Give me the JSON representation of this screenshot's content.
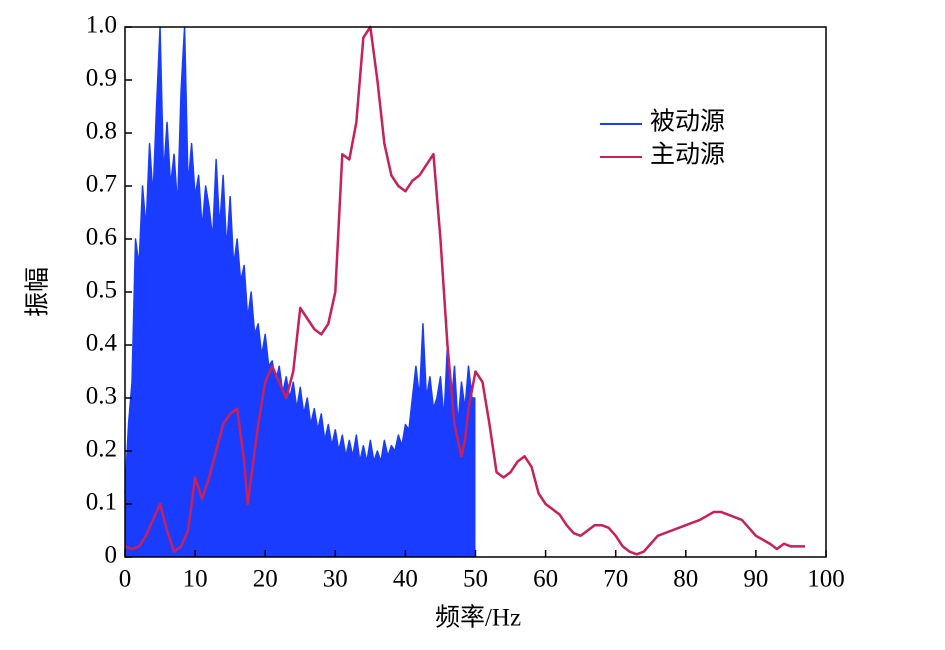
{
  "chart_data": {
    "type": "line",
    "xlabel": "频率/Hz",
    "ylabel": "振幅",
    "xlim": [
      0,
      100
    ],
    "ylim": [
      0,
      1
    ],
    "xticks": [
      0,
      10,
      20,
      30,
      40,
      50,
      60,
      70,
      80,
      90,
      100
    ],
    "yticks": [
      0,
      0.1,
      0.2,
      0.3,
      0.4,
      0.5,
      0.6,
      0.7,
      0.8,
      0.9,
      {
        "value": 1,
        "label": "1.0"
      }
    ],
    "legend": "upper right",
    "series": [
      {
        "name": "被动源",
        "color": "#1a3cff",
        "fill": true,
        "x": [
          0,
          0.5,
          1,
          1.5,
          2,
          2.5,
          3,
          3.5,
          4,
          4.5,
          5,
          5.5,
          6,
          6.5,
          7,
          7.5,
          8,
          8.5,
          9,
          9.5,
          10,
          10.5,
          11,
          11.5,
          12,
          12.5,
          13,
          13.5,
          14,
          14.5,
          15,
          15.5,
          16,
          16.5,
          17,
          17.5,
          18,
          18.5,
          19,
          19.5,
          20,
          20.5,
          21,
          21.5,
          22,
          22.5,
          23,
          23.5,
          24,
          24.5,
          25,
          25.5,
          26,
          26.5,
          27,
          27.5,
          28,
          28.5,
          29,
          29.5,
          30,
          30.5,
          31,
          31.5,
          32,
          32.5,
          33,
          33.5,
          34,
          34.5,
          35,
          35.5,
          36,
          36.5,
          37,
          37.5,
          38,
          38.5,
          39,
          39.5,
          40,
          40.5,
          41,
          41.5,
          42,
          42.5,
          43,
          43.5,
          44,
          44.5,
          45,
          45.5,
          46,
          46.5,
          47,
          47.5,
          48,
          48.5,
          49,
          49.5,
          50
        ],
        "values": [
          0.12,
          0.25,
          0.33,
          0.6,
          0.55,
          0.7,
          0.62,
          0.78,
          0.68,
          0.85,
          1.0,
          0.72,
          0.82,
          0.7,
          0.76,
          0.66,
          0.88,
          1.0,
          0.7,
          0.78,
          0.68,
          0.72,
          0.62,
          0.7,
          0.66,
          0.6,
          0.75,
          0.62,
          0.72,
          0.58,
          0.68,
          0.55,
          0.6,
          0.52,
          0.55,
          0.45,
          0.5,
          0.42,
          0.44,
          0.38,
          0.42,
          0.36,
          0.37,
          0.33,
          0.36,
          0.31,
          0.34,
          0.3,
          0.33,
          0.28,
          0.32,
          0.27,
          0.3,
          0.25,
          0.28,
          0.24,
          0.27,
          0.22,
          0.25,
          0.21,
          0.24,
          0.2,
          0.23,
          0.19,
          0.22,
          0.19,
          0.23,
          0.18,
          0.21,
          0.18,
          0.22,
          0.18,
          0.2,
          0.18,
          0.22,
          0.19,
          0.21,
          0.2,
          0.23,
          0.21,
          0.25,
          0.24,
          0.3,
          0.36,
          0.3,
          0.44,
          0.3,
          0.34,
          0.28,
          0.3,
          0.34,
          0.26,
          0.4,
          0.28,
          0.36,
          0.25,
          0.33,
          0.28,
          0.36,
          0.3,
          0.3
        ]
      },
      {
        "name": "主动源",
        "color": "#c8205a",
        "fill": false,
        "x": [
          0,
          1,
          2,
          3,
          4,
          5,
          6,
          7,
          8,
          9,
          10,
          11,
          12,
          13,
          14,
          15,
          16,
          17,
          17.5,
          18,
          19,
          20,
          21,
          22,
          23,
          24,
          25,
          26,
          27,
          28,
          29,
          30,
          31,
          32,
          33,
          34,
          35,
          36,
          37,
          38,
          39,
          40,
          41,
          42,
          43,
          44,
          45,
          46,
          47,
          48,
          48.5,
          49,
          50,
          51,
          52,
          53,
          54,
          55,
          56,
          57,
          58,
          59,
          60,
          61,
          62,
          63,
          64,
          65,
          66,
          67,
          68,
          69,
          70,
          71,
          72,
          73,
          74,
          75,
          76,
          78,
          80,
          82,
          84,
          85,
          86,
          88,
          90,
          92,
          93,
          94,
          95,
          97
        ],
        "values": [
          0.02,
          0.015,
          0.02,
          0.04,
          0.07,
          0.1,
          0.05,
          0.01,
          0.02,
          0.05,
          0.15,
          0.11,
          0.15,
          0.2,
          0.25,
          0.27,
          0.28,
          0.18,
          0.1,
          0.15,
          0.25,
          0.33,
          0.36,
          0.33,
          0.3,
          0.35,
          0.47,
          0.45,
          0.43,
          0.42,
          0.44,
          0.5,
          0.76,
          0.75,
          0.82,
          0.98,
          1.0,
          0.9,
          0.78,
          0.72,
          0.7,
          0.69,
          0.71,
          0.72,
          0.74,
          0.76,
          0.6,
          0.4,
          0.25,
          0.19,
          0.22,
          0.28,
          0.35,
          0.33,
          0.25,
          0.16,
          0.15,
          0.16,
          0.18,
          0.19,
          0.17,
          0.12,
          0.1,
          0.09,
          0.08,
          0.06,
          0.045,
          0.04,
          0.05,
          0.06,
          0.06,
          0.055,
          0.04,
          0.02,
          0.01,
          0.005,
          0.01,
          0.025,
          0.04,
          0.05,
          0.06,
          0.07,
          0.085,
          0.085,
          0.08,
          0.07,
          0.04,
          0.025,
          0.015,
          0.025,
          0.02,
          0.02
        ]
      }
    ]
  }
}
